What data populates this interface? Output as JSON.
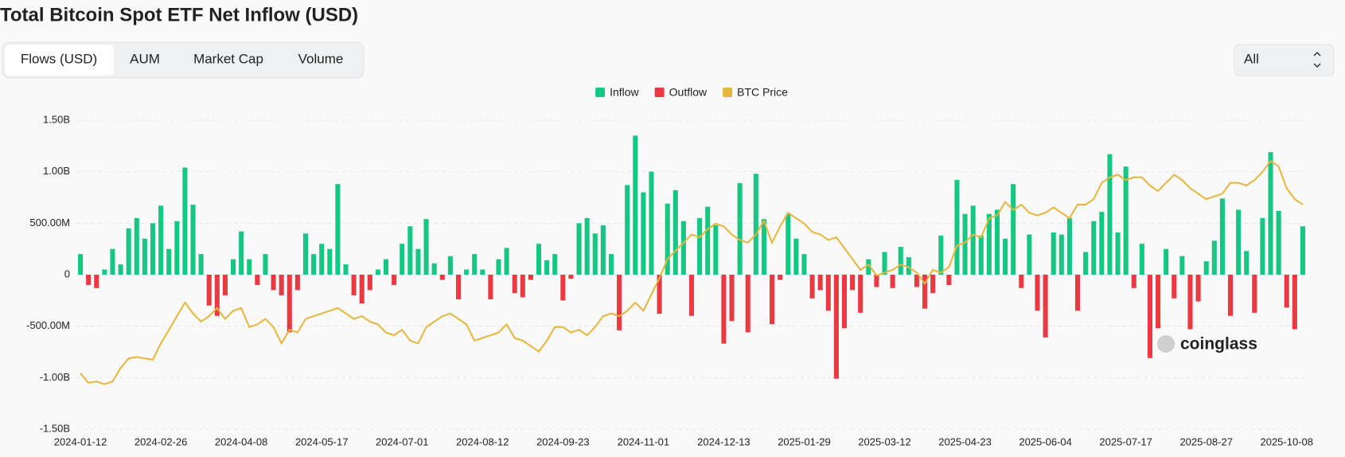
{
  "page": {
    "tabs": [
      "Flows (USD)",
      "AUM",
      "Market Cap",
      "Volume"
    ],
    "range": "All",
    "watermark": "coinglass"
  },
  "chart_data": {
    "type": "bar",
    "title": "Total Bitcoin Spot ETF Net Inflow (USD)",
    "legend": "top",
    "grid": true,
    "categories": [
      "2024-01-12",
      null,
      null,
      null,
      null,
      null,
      null,
      null,
      null,
      null,
      "2024-02-26",
      null,
      null,
      null,
      null,
      null,
      null,
      null,
      null,
      null,
      "2024-04-08",
      null,
      null,
      null,
      null,
      null,
      null,
      null,
      null,
      null,
      "2024-05-17",
      null,
      null,
      null,
      null,
      null,
      null,
      null,
      null,
      null,
      "2024-07-01",
      null,
      null,
      null,
      null,
      null,
      null,
      null,
      null,
      null,
      "2024-08-12",
      null,
      null,
      null,
      null,
      null,
      null,
      null,
      null,
      null,
      "2024-09-23",
      null,
      null,
      null,
      null,
      null,
      null,
      null,
      null,
      null,
      "2024-11-01",
      null,
      null,
      null,
      null,
      null,
      null,
      null,
      null,
      null,
      "2024-12-13",
      null,
      null,
      null,
      null,
      null,
      null,
      null,
      null,
      null,
      "2025-01-29",
      null,
      null,
      null,
      null,
      null,
      null,
      null,
      null,
      null,
      "2025-03-12",
      null,
      null,
      null,
      null,
      null,
      null,
      null,
      null,
      null,
      "2025-04-23",
      null,
      null,
      null,
      null,
      null,
      null,
      null,
      null,
      null,
      "2025-06-04",
      null,
      null,
      null,
      null,
      null,
      null,
      null,
      null,
      null,
      "2025-07-17",
      null,
      null,
      null,
      null,
      null,
      null,
      null,
      null,
      null,
      "2025-08-27",
      null,
      null,
      null,
      null,
      null,
      null,
      null,
      null,
      null,
      "2025-10-08",
      null,
      null
    ],
    "ylim": [
      -1500000000.0,
      1500000000.0
    ],
    "yticks": [
      {
        "value": 1500000000.0,
        "label": "1.50B"
      },
      {
        "value": 1000000000.0,
        "label": "1.00B"
      },
      {
        "value": 500000000.0,
        "label": "500.00M"
      },
      0,
      {
        "value": -500000000.0,
        "label": "-500.00M"
      },
      {
        "value": -1000000000.0,
        "label": "-1.00B"
      },
      {
        "value": -1500000000.0,
        "label": "-1.50B"
      }
    ],
    "y2lim": [
      25500,
      139000
    ],
    "series": [
      {
        "name": "Inflow",
        "color": "#16c784",
        "values": [
          200000000.0,
          null,
          null,
          50000000.0,
          250000000.0,
          100000000.0,
          450000000.0,
          550000000.0,
          350000000.0,
          500000000.0,
          670000000.0,
          250000000.0,
          520000000.0,
          1040000000.0,
          680000000.0,
          200000000.0,
          null,
          null,
          null,
          150000000.0,
          420000000.0,
          150000000.0,
          null,
          200000000.0,
          null,
          null,
          null,
          null,
          400000000.0,
          200000000.0,
          300000000.0,
          250000000.0,
          880000000.0,
          100000000.0,
          null,
          null,
          null,
          50000000.0,
          150000000.0,
          null,
          300000000.0,
          470000000.0,
          250000000.0,
          540000000.0,
          110000000.0,
          null,
          180000000.0,
          null,
          50000000.0,
          200000000.0,
          50000000.0,
          null,
          150000000.0,
          260000000.0,
          null,
          null,
          null,
          300000000.0,
          140000000.0,
          200000000.0,
          null,
          null,
          500000000.0,
          550000000.0,
          400000000.0,
          480000000.0,
          200000000.0,
          null,
          870000000.0,
          1350000000.0,
          800000000.0,
          1000000000.0,
          null,
          690000000.0,
          820000000.0,
          520000000.0,
          null,
          550000000.0,
          660000000.0,
          480000000.0,
          null,
          null,
          890000000.0,
          null,
          980000000.0,
          540000000.0,
          null,
          null,
          590000000.0,
          350000000.0,
          200000000.0,
          null,
          null,
          null,
          null,
          null,
          null,
          null,
          150000000.0,
          null,
          220000000.0,
          null,
          270000000.0,
          170000000.0,
          null,
          null,
          null,
          380000000.0,
          null,
          920000000.0,
          590000000.0,
          670000000.0,
          380000000.0,
          590000000.0,
          630000000.0,
          350000000.0,
          880000000.0,
          null,
          390000000.0,
          null,
          null,
          410000000.0,
          390000000.0,
          550000000.0,
          null,
          220000000.0,
          520000000.0,
          610000000.0,
          1170000000.0,
          410000000.0,
          1050000000.0,
          null,
          300000000.0,
          null,
          null,
          250000000.0,
          null,
          180000000.0,
          null,
          null,
          130000000.0,
          330000000.0,
          740000000.0,
          null,
          630000000.0,
          230000000.0,
          null,
          550000000.0,
          1190000000.0,
          620000000.0,
          null,
          null,
          470000000.0
        ]
      },
      {
        "name": "Outflow",
        "color": "#ea3943",
        "values": [
          null,
          -100000000.0,
          -130000000.0,
          null,
          null,
          null,
          null,
          null,
          null,
          null,
          null,
          null,
          null,
          null,
          null,
          null,
          -300000000.0,
          -400000000.0,
          -200000000.0,
          null,
          null,
          null,
          -100000000.0,
          null,
          -150000000.0,
          -200000000.0,
          -560000000.0,
          -150000000.0,
          null,
          null,
          null,
          null,
          null,
          null,
          -200000000.0,
          -280000000.0,
          -150000000.0,
          null,
          null,
          -100000000.0,
          null,
          null,
          null,
          null,
          null,
          -50000000.0,
          null,
          -240000000.0,
          null,
          null,
          null,
          -240000000.0,
          null,
          null,
          -180000000.0,
          -220000000.0,
          -50000000.0,
          null,
          null,
          null,
          -250000000.0,
          -40000000.0,
          null,
          null,
          null,
          null,
          null,
          -540000000.0,
          null,
          null,
          null,
          null,
          -380000000.0,
          null,
          null,
          null,
          -400000000.0,
          null,
          null,
          null,
          -670000000.0,
          -450000000.0,
          null,
          -560000000.0,
          null,
          null,
          -480000000.0,
          -50000000.0,
          null,
          null,
          null,
          -230000000.0,
          -150000000.0,
          -350000000.0,
          -1010000000.0,
          -520000000.0,
          -150000000.0,
          -370000000.0,
          null,
          -120000000.0,
          null,
          -130000000.0,
          null,
          null,
          -120000000.0,
          -330000000.0,
          -180000000.0,
          null,
          -100000000.0,
          null,
          null,
          null,
          null,
          null,
          null,
          null,
          null,
          -130000000.0,
          null,
          -350000000.0,
          -610000000.0,
          null,
          null,
          null,
          -350000000.0,
          null,
          null,
          null,
          null,
          null,
          null,
          -130000000.0,
          null,
          -810000000.0,
          -520000000.0,
          null,
          -230000000.0,
          null,
          -530000000.0,
          -260000000.0,
          null,
          null,
          null,
          -400000000.0,
          null,
          null,
          -370000000.0,
          null,
          null,
          null,
          -320000000.0,
          -530000000.0,
          null
        ]
      },
      {
        "name": "BTC Price",
        "color": "#e8b53c",
        "axis": "y2",
        "values": [
          46000,
          42500,
          43000,
          42000,
          43000,
          48000,
          51500,
          52000,
          51500,
          51000,
          57000,
          62000,
          67000,
          72000,
          68000,
          65000,
          67000,
          70000,
          66000,
          69000,
          70000,
          63000,
          64000,
          66000,
          63000,
          57000,
          62000,
          61000,
          66000,
          67000,
          68000,
          69000,
          70000,
          68000,
          66000,
          67000,
          65000,
          64000,
          61000,
          60000,
          62000,
          58000,
          57000,
          63000,
          65000,
          67000,
          68000,
          66000,
          64000,
          58000,
          59000,
          60000,
          61000,
          64000,
          59000,
          58000,
          56000,
          54000,
          58000,
          63000,
          63000,
          61000,
          62000,
          60000,
          63000,
          67000,
          68000,
          67000,
          69000,
          72000,
          69000,
          75000,
          81000,
          88000,
          91000,
          94000,
          97000,
          96000,
          99000,
          101000,
          100000,
          97000,
          95000,
          94000,
          97000,
          102000,
          94000,
          100000,
          105000,
          103000,
          101000,
          98000,
          97000,
          95000,
          96000,
          92000,
          88000,
          84000,
          86000,
          82000,
          83000,
          84000,
          86000,
          85000,
          83000,
          79000,
          84000,
          83000,
          85000,
          93000,
          94000,
          97000,
          96000,
          103000,
          104000,
          109000,
          106000,
          108000,
          105000,
          104000,
          105000,
          107000,
          105000,
          103000,
          108000,
          108000,
          110000,
          116000,
          118000,
          119000,
          117000,
          118000,
          118000,
          115000,
          113000,
          116000,
          119000,
          117000,
          114000,
          112000,
          110000,
          111000,
          112000,
          116000,
          116000,
          115000,
          117000,
          120000,
          124000,
          122000,
          114000,
          110000,
          108000
        ]
      }
    ]
  }
}
